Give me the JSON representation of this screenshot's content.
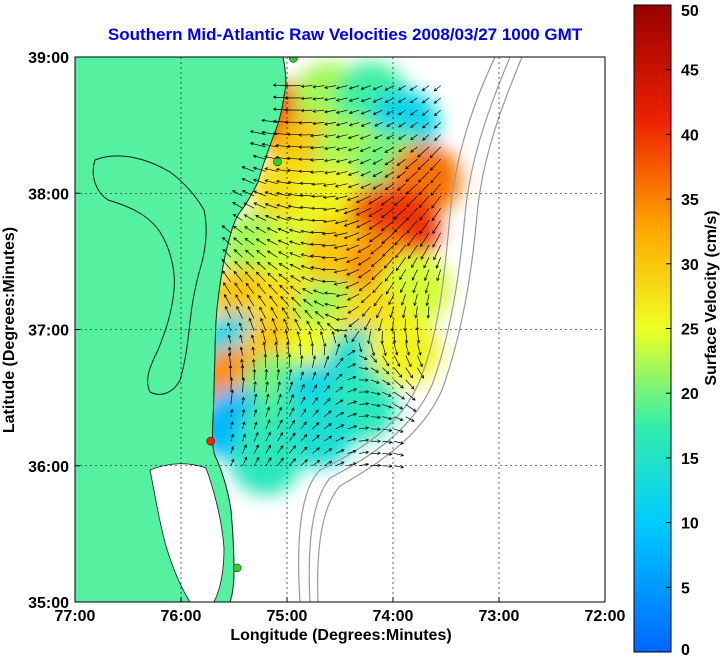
{
  "chart_data": {
    "type": "heatmap",
    "title": "Southern Mid-Atlantic Raw Velocities 2008/03/27 1000 GMT",
    "xlabel": "Longitude (Degrees:Minutes)",
    "ylabel": "Latitude (Degrees:Minutes)",
    "xlim": [
      -77,
      -72
    ],
    "ylim": [
      35,
      39
    ],
    "x_ticks": [
      {
        "value": -77,
        "label": "77:00"
      },
      {
        "value": -76,
        "label": "76:00"
      },
      {
        "value": -75,
        "label": "75:00"
      },
      {
        "value": -74,
        "label": "74:00"
      },
      {
        "value": -73,
        "label": "73:00"
      },
      {
        "value": -72,
        "label": "72:00"
      }
    ],
    "y_ticks": [
      {
        "value": 35,
        "label": "35:00"
      },
      {
        "value": 36,
        "label": "36:00"
      },
      {
        "value": 37,
        "label": "37:00"
      },
      {
        "value": 38,
        "label": "38:00"
      },
      {
        "value": 39,
        "label": "39:00"
      }
    ],
    "grid": true,
    "colorbar": {
      "label": "Surface Velocity (cm/s)",
      "range": [
        0,
        50
      ],
      "ticks": [
        {
          "value": 0,
          "label": "0"
        },
        {
          "value": 5,
          "label": "5"
        },
        {
          "value": 10,
          "label": "10"
        },
        {
          "value": 15,
          "label": "15"
        },
        {
          "value": 20,
          "label": "20"
        },
        {
          "value": 25,
          "label": "25"
        },
        {
          "value": 30,
          "label": "30"
        },
        {
          "value": 35,
          "label": "35"
        },
        {
          "value": 40,
          "label": "40"
        },
        {
          "value": 45,
          "label": "45"
        },
        {
          "value": 50,
          "label": "50"
        }
      ]
    },
    "speed_cells": [
      {
        "lon": -75.0,
        "lat": 38.55,
        "v": 38
      },
      {
        "lon": -74.6,
        "lat": 38.7,
        "v": 22
      },
      {
        "lon": -74.2,
        "lat": 38.7,
        "v": 18
      },
      {
        "lon": -73.9,
        "lat": 38.5,
        "v": 12
      },
      {
        "lon": -74.8,
        "lat": 38.3,
        "v": 30
      },
      {
        "lon": -74.4,
        "lat": 38.3,
        "v": 22
      },
      {
        "lon": -74.0,
        "lat": 38.2,
        "v": 20
      },
      {
        "lon": -73.7,
        "lat": 38.1,
        "v": 36
      },
      {
        "lon": -75.0,
        "lat": 38.0,
        "v": 28
      },
      {
        "lon": -74.6,
        "lat": 37.95,
        "v": 26
      },
      {
        "lon": -74.1,
        "lat": 37.8,
        "v": 38
      },
      {
        "lon": -73.9,
        "lat": 37.75,
        "v": 40
      },
      {
        "lon": -75.3,
        "lat": 37.6,
        "v": 22
      },
      {
        "lon": -74.9,
        "lat": 37.55,
        "v": 24
      },
      {
        "lon": -74.5,
        "lat": 37.55,
        "v": 30
      },
      {
        "lon": -74.1,
        "lat": 37.45,
        "v": 34
      },
      {
        "lon": -73.8,
        "lat": 37.3,
        "v": 24
      },
      {
        "lon": -75.4,
        "lat": 37.2,
        "v": 30
      },
      {
        "lon": -75.0,
        "lat": 37.15,
        "v": 28
      },
      {
        "lon": -74.6,
        "lat": 37.1,
        "v": 22
      },
      {
        "lon": -74.2,
        "lat": 37.05,
        "v": 28
      },
      {
        "lon": -75.5,
        "lat": 36.85,
        "v": 12
      },
      {
        "lon": -75.1,
        "lat": 36.85,
        "v": 30
      },
      {
        "lon": -74.7,
        "lat": 36.8,
        "v": 25
      },
      {
        "lon": -74.3,
        "lat": 36.75,
        "v": 14
      },
      {
        "lon": -73.9,
        "lat": 36.85,
        "v": 26
      },
      {
        "lon": -75.55,
        "lat": 36.6,
        "v": 34
      },
      {
        "lon": -75.1,
        "lat": 36.55,
        "v": 20
      },
      {
        "lon": -74.7,
        "lat": 36.5,
        "v": 12
      },
      {
        "lon": -74.3,
        "lat": 36.45,
        "v": 16
      },
      {
        "lon": -75.5,
        "lat": 36.3,
        "v": 8
      },
      {
        "lon": -75.1,
        "lat": 36.25,
        "v": 18
      },
      {
        "lon": -74.7,
        "lat": 36.25,
        "v": 14
      },
      {
        "lon": -75.2,
        "lat": 36.05,
        "v": 16
      }
    ],
    "station_markers": [
      {
        "lon": -74.94,
        "lat": 38.99,
        "color": "#33cc33"
      },
      {
        "lon": -75.09,
        "lat": 38.23,
        "color": "#33cc33"
      },
      {
        "lon": -75.72,
        "lat": 36.18,
        "color": "#ff2200"
      },
      {
        "lon": -75.47,
        "lat": 35.25,
        "color": "#33cc33"
      }
    ],
    "colors": {
      "land": "#55f0a0",
      "ocean": "#ffffff",
      "coastline": "#1a1a1a",
      "bathymetry": "#999999",
      "grid": "#000000",
      "vector": "#000000"
    }
  }
}
